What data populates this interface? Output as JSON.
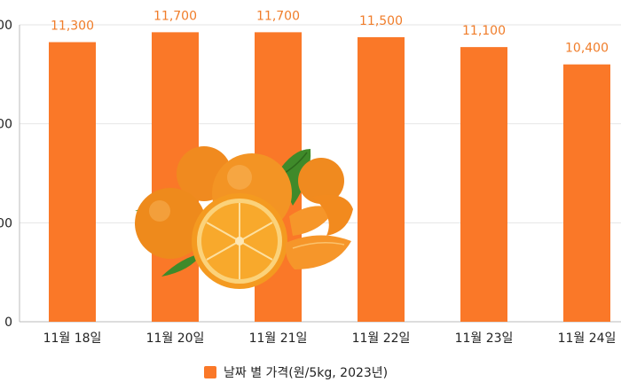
{
  "chart_data": {
    "type": "bar",
    "categories": [
      "11월 18일",
      "11월 20일",
      "11월 21일",
      "11월 22일",
      "11월 23일",
      "11월 24일"
    ],
    "series": [
      {
        "name": "날짜 별 가격(원/5kg, 2023년)",
        "values": [
          11300,
          11700,
          11700,
          11500,
          11100,
          10400
        ],
        "labels": [
          "11,300",
          "11,700",
          "11,700",
          "11,500",
          "11,100",
          "10,400"
        ]
      }
    ],
    "ylim": [
      0,
      12000
    ],
    "y_ticks": [
      "000",
      "000",
      "000",
      "0"
    ],
    "grid": true,
    "legend_position": "bottom",
    "colors": {
      "bar": "#fa7828",
      "label": "#f07d2a",
      "axis": "#222222",
      "grid": "#e6e6e6"
    },
    "decoration": "mandarin-oranges-photo"
  }
}
